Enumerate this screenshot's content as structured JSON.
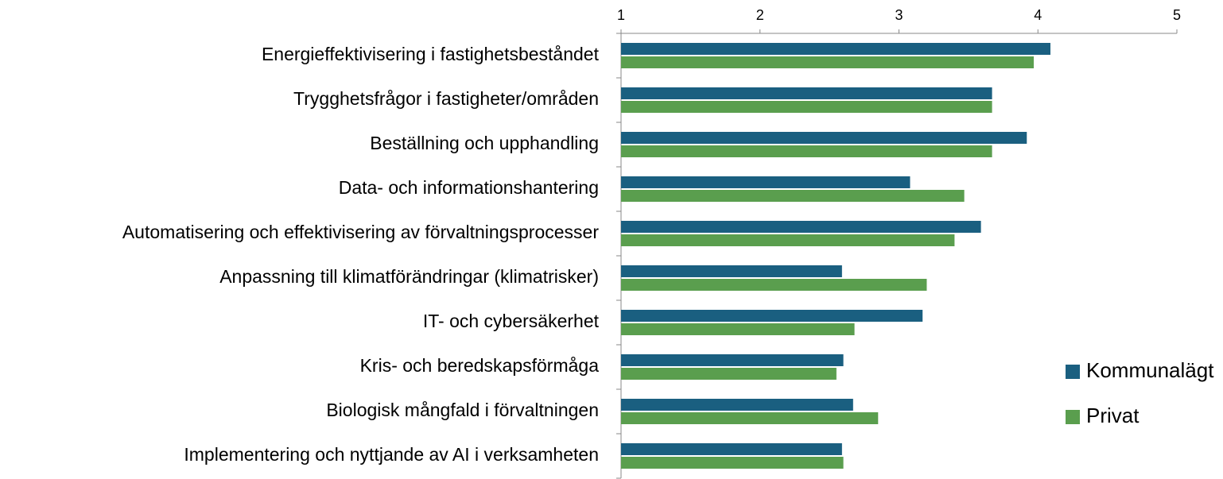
{
  "chart_data": {
    "type": "barh",
    "categories": [
      "Energieffektivisering i fastighetsbeståndet",
      "Trygghetsfrågor i fastigheter/områden",
      "Beställning och upphandling",
      "Data- och informationshantering",
      "Automatisering och effektivisering av förvaltningsprocesser",
      "Anpassning till klimatförändringar (klimatrisker)",
      "IT- och cybersäkerhet",
      "Kris- och beredskapsförmåga",
      "Biologisk mångfald i förvaltningen",
      "Implementering och nyttjande av AI i verksamheten"
    ],
    "series": [
      {
        "name": "Kommunalägt",
        "color": "#1a5f80",
        "values": [
          4.09,
          3.67,
          3.92,
          3.08,
          3.59,
          2.59,
          3.17,
          2.6,
          2.67,
          2.59
        ]
      },
      {
        "name": "Privat",
        "color": "#5a9e4e",
        "values": [
          3.97,
          3.67,
          3.67,
          3.47,
          3.4,
          3.2,
          2.68,
          2.55,
          2.85,
          2.6
        ]
      }
    ],
    "xlim": [
      1,
      5
    ],
    "xticks": [
      1,
      2,
      3,
      4,
      5
    ],
    "legend": "right"
  }
}
